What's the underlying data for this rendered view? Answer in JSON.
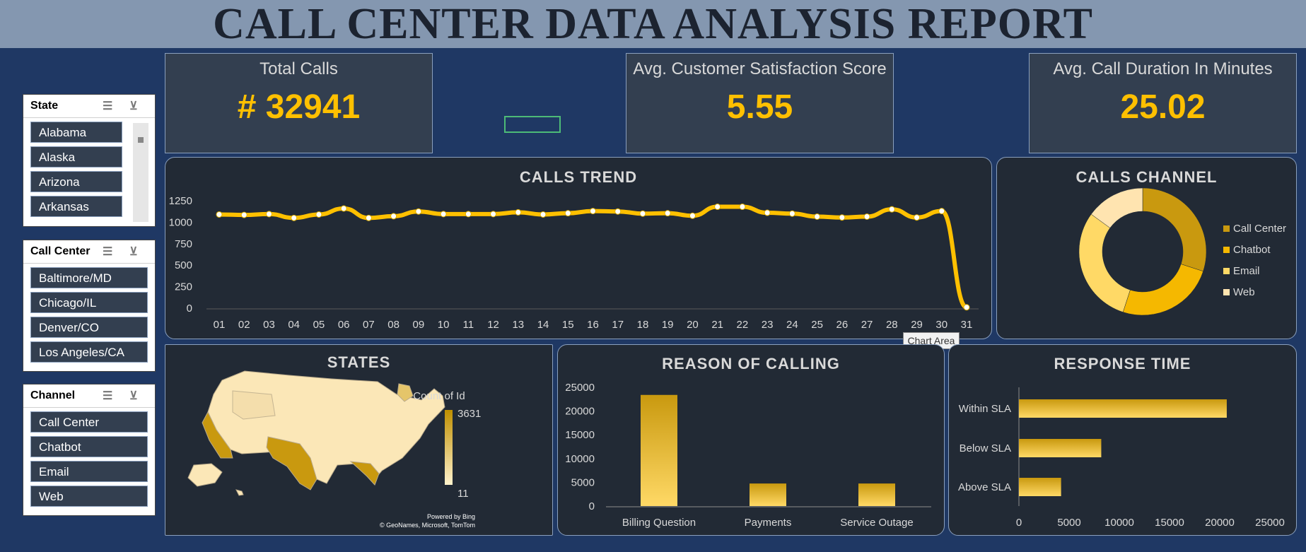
{
  "header": {
    "title": "CALL CENTER DATA ANALYSIS REPORT"
  },
  "kpis": {
    "total_calls_label": "Total Calls",
    "total_calls_value": "# 32941",
    "csat_label": "Avg. Customer Satisfaction Score",
    "csat_value": "5.55",
    "duration_label": "Avg. Call Duration In Minutes",
    "duration_value": "25.02"
  },
  "slicers": {
    "state": {
      "title": "State",
      "items": [
        "Alabama",
        "Alaska",
        "Arizona",
        "Arkansas"
      ]
    },
    "call_center": {
      "title": "Call Center",
      "items": [
        "Baltimore/MD",
        "Chicago/IL",
        "Denver/CO",
        "Los Angeles/CA"
      ]
    },
    "channel": {
      "title": "Channel",
      "items": [
        "Call Center",
        "Chatbot",
        "Email",
        "Web"
      ]
    }
  },
  "tooltip": {
    "text": "Chart Area"
  },
  "states_map": {
    "title": "STATES",
    "legend_title": "Count of Id",
    "max_label": "3631",
    "min_label": "11",
    "credit_1": "Powered by Bing",
    "credit_2": "© GeoNames, Microsoft, TomTom"
  },
  "chart_data": [
    {
      "type": "line",
      "title": "CALLS TREND",
      "categories": [
        "01",
        "02",
        "03",
        "04",
        "05",
        "06",
        "07",
        "08",
        "09",
        "10",
        "11",
        "12",
        "13",
        "14",
        "15",
        "16",
        "17",
        "18",
        "19",
        "20",
        "21",
        "22",
        "23",
        "24",
        "25",
        "26",
        "27",
        "28",
        "29",
        "30",
        "31"
      ],
      "values": [
        1090,
        1085,
        1095,
        1050,
        1090,
        1160,
        1050,
        1070,
        1125,
        1095,
        1095,
        1095,
        1115,
        1090,
        1105,
        1130,
        1125,
        1100,
        1105,
        1075,
        1180,
        1180,
        1110,
        1100,
        1065,
        1055,
        1065,
        1150,
        1055,
        1130,
        10
      ],
      "yticks": [
        0,
        250,
        500,
        750,
        1000,
        1250
      ],
      "ylim": [
        0,
        1250
      ],
      "color": "#ffc000"
    },
    {
      "type": "pie",
      "title": "CALLS CHANNEL",
      "categories": [
        "Call Center",
        "Chatbot",
        "Email",
        "Web"
      ],
      "values": [
        30,
        25,
        30,
        15
      ],
      "colors": [
        "#c9990f",
        "#f5b800",
        "#ffd966",
        "#ffe4b0"
      ],
      "legend_position": "right"
    },
    {
      "type": "bar",
      "title": "REASON OF CALLING",
      "categories": [
        "Billing Question",
        "Payments",
        "Service Outage"
      ],
      "values": [
        23400,
        4750,
        4750
      ],
      "yticks": [
        0,
        5000,
        10000,
        15000,
        20000,
        25000
      ],
      "ylim": [
        0,
        25000
      ]
    },
    {
      "type": "bar",
      "orientation": "horizontal",
      "title": "RESPONSE TIME",
      "categories": [
        "Within SLA",
        "Below SLA",
        "Above SLA"
      ],
      "values": [
        20700,
        8200,
        4200
      ],
      "xticks": [
        0,
        5000,
        10000,
        15000,
        20000,
        25000
      ],
      "xlim": [
        0,
        25000
      ]
    }
  ]
}
